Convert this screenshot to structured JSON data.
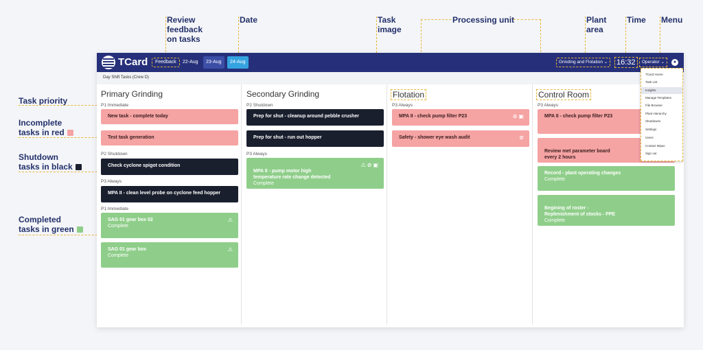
{
  "annotations": {
    "review_feedback": "Review\nfeedback\non tasks",
    "date": "Date",
    "task_image": "Task\nimage",
    "processing_unit": "Processing unit",
    "plant_area": "Plant\narea",
    "time": "Time",
    "menu": "Menu",
    "task_priority": "Task priority",
    "incomplete": "Incomplete\ntasks in red",
    "shutdown": "Shutdown\ntasks in black",
    "completed": "Completed\ntasks in green"
  },
  "topbar": {
    "brand": "TCard",
    "feedback": "Feedback",
    "dates": [
      "22-Aug",
      "23-Aug",
      "24-Aug"
    ],
    "plant": "Grinding and Flotation ⌄",
    "time": "16:32",
    "user": "Operator ⌄"
  },
  "subbar": "Day Shift Tasks (Crew D)",
  "columns": [
    {
      "title": "Primary Grinding",
      "groups": [
        "P1 Immediate",
        "P2 Shutdown",
        "P3 Always",
        "P1 Immediate"
      ],
      "cards": [
        {
          "title": "New task - complete today"
        },
        {
          "title": "Test task generation"
        },
        {
          "title": "Check cyclone spigot condition"
        },
        {
          "title": "MPA II - clean level probe on cyclone feed hopper"
        },
        {
          "title": "SAG 01 gear box 02",
          "sub": "Complete"
        },
        {
          "title": "SAG 01 gear box",
          "sub": "Complete"
        }
      ]
    },
    {
      "title": "Secondary Grinding",
      "groups": [
        "P2 Shutdown",
        "P3 Always"
      ],
      "cards": [
        {
          "title": "Prep for shut - cleanup around pebble crusher"
        },
        {
          "title": "Prep for shut - run out hopper"
        },
        {
          "title": "MPA II - pump motor high\ntemperature rate change detected",
          "sub": "Complete"
        }
      ]
    },
    {
      "title": "Flotation",
      "groups": [
        "P3 Always"
      ],
      "cards": [
        {
          "title": "MPA II - check pump filter P23"
        },
        {
          "title": "Safety - shower eye wash audit"
        }
      ]
    },
    {
      "title": "Control Room",
      "groups": [
        "P3 Always"
      ],
      "cards": [
        {
          "title": "MPA II - check pump filter P23"
        },
        {
          "title": "Review met parameter board\nevery 2 hours"
        },
        {
          "title": "Record - plant operating changes",
          "sub": "Complete"
        },
        {
          "title": "Begining of roster -\nReplenishment of stocks - PPE",
          "sub": "Complete"
        }
      ]
    }
  ],
  "menu": [
    "TCard Home",
    "Task List",
    "Insights",
    "Manage Templates",
    "File Browser",
    "Plant Hierarchy",
    "Shutdowns",
    "Settings",
    "Users",
    "Contact Mipac",
    "Sign out"
  ],
  "colors": {
    "incomplete": "#f5a3a3",
    "shutdown": "#1a1f2e",
    "complete": "#8fce8a",
    "header": "#26307a",
    "accent": "#e8b73a"
  },
  "icons": [
    "warning-icon",
    "paperclip-icon",
    "image-icon",
    "user-icon",
    "chevron-down-icon"
  ]
}
